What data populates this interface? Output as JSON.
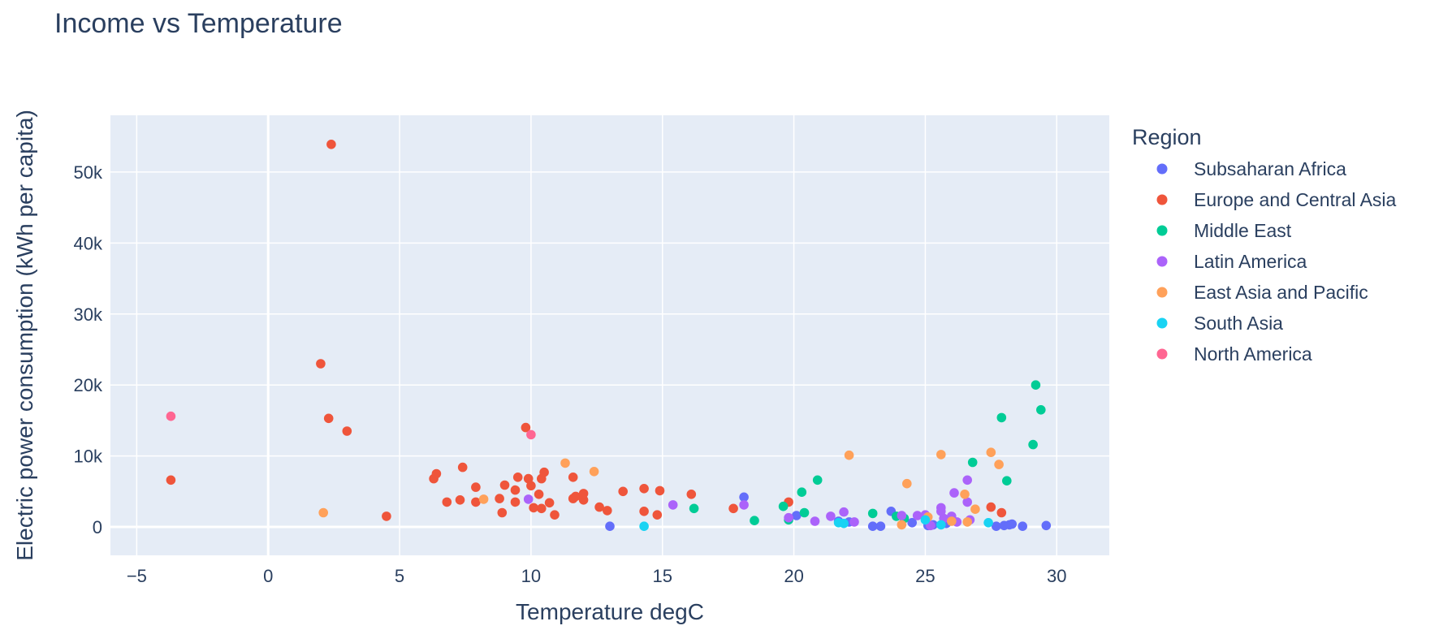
{
  "chart_data": {
    "type": "scatter",
    "title": "Income vs Temperature",
    "xlabel": "Temperature degC",
    "ylabel": "Electric power consumption (kWh per capita)",
    "xlim": [
      -6,
      32
    ],
    "ylim": [
      -4000,
      58000
    ],
    "x_ticks": [
      -5,
      0,
      5,
      10,
      15,
      20,
      25,
      30
    ],
    "x_tick_labels": [
      "−5",
      "0",
      "5",
      "10",
      "15",
      "20",
      "25",
      "30"
    ],
    "y_ticks": [
      0,
      10000,
      20000,
      30000,
      40000,
      50000
    ],
    "y_tick_labels": [
      "0",
      "10k",
      "20k",
      "30k",
      "40k",
      "50k"
    ],
    "grid": true,
    "legend_title": "Region",
    "legend_position": "right",
    "plot_bgcolor": "#e5ecf6",
    "series": [
      {
        "name": "Subsaharan Africa",
        "color": "#636efa",
        "points": [
          [
            13.0,
            100
          ],
          [
            18.1,
            4200
          ],
          [
            20.1,
            1600
          ],
          [
            21.7,
            800
          ],
          [
            22.1,
            700
          ],
          [
            23.0,
            100
          ],
          [
            23.3,
            100
          ],
          [
            23.7,
            2200
          ],
          [
            24.5,
            600
          ],
          [
            25.1,
            200
          ],
          [
            25.3,
            300
          ],
          [
            25.8,
            500
          ],
          [
            27.7,
            100
          ],
          [
            28.0,
            200
          ],
          [
            28.2,
            300
          ],
          [
            28.3,
            400
          ],
          [
            28.7,
            100
          ],
          [
            29.6,
            200
          ]
        ]
      },
      {
        "name": "Europe and Central Asia",
        "color": "#ef553b",
        "points": [
          [
            -3.7,
            6600
          ],
          [
            2.0,
            23000
          ],
          [
            2.3,
            15300
          ],
          [
            2.4,
            53900
          ],
          [
            3.0,
            13500
          ],
          [
            4.5,
            1500
          ],
          [
            6.3,
            6800
          ],
          [
            6.4,
            7500
          ],
          [
            6.8,
            3500
          ],
          [
            7.3,
            3800
          ],
          [
            7.4,
            8400
          ],
          [
            7.9,
            3500
          ],
          [
            7.9,
            5600
          ],
          [
            8.8,
            4000
          ],
          [
            8.9,
            2000
          ],
          [
            9.0,
            5900
          ],
          [
            9.4,
            5200
          ],
          [
            9.4,
            3500
          ],
          [
            9.5,
            7000
          ],
          [
            9.8,
            14000
          ],
          [
            9.9,
            6800
          ],
          [
            10.0,
            5800
          ],
          [
            10.1,
            2700
          ],
          [
            10.3,
            4600
          ],
          [
            10.4,
            2600
          ],
          [
            10.4,
            6800
          ],
          [
            10.5,
            7700
          ],
          [
            10.7,
            3400
          ],
          [
            10.9,
            1700
          ],
          [
            11.6,
            7000
          ],
          [
            11.6,
            4000
          ],
          [
            11.7,
            4300
          ],
          [
            12.0,
            3800
          ],
          [
            12.0,
            4700
          ],
          [
            12.6,
            2800
          ],
          [
            12.9,
            2300
          ],
          [
            13.5,
            5000
          ],
          [
            14.3,
            5400
          ],
          [
            14.3,
            2200
          ],
          [
            14.8,
            1700
          ],
          [
            14.9,
            5100
          ],
          [
            16.1,
            4600
          ],
          [
            17.7,
            2600
          ],
          [
            19.8,
            3500
          ],
          [
            27.5,
            2800
          ],
          [
            27.9,
            2000
          ]
        ]
      },
      {
        "name": "Middle East",
        "color": "#00cc96",
        "points": [
          [
            16.2,
            2600
          ],
          [
            18.5,
            900
          ],
          [
            19.6,
            2900
          ],
          [
            19.8,
            1000
          ],
          [
            20.3,
            4900
          ],
          [
            20.4,
            2000
          ],
          [
            20.9,
            6600
          ],
          [
            23.0,
            1900
          ],
          [
            23.9,
            1500
          ],
          [
            24.2,
            1200
          ],
          [
            26.8,
            9100
          ],
          [
            27.9,
            15400
          ],
          [
            28.1,
            6500
          ],
          [
            29.1,
            11600
          ],
          [
            29.2,
            20000
          ],
          [
            29.4,
            16500
          ]
        ]
      },
      {
        "name": "Latin America",
        "color": "#ab63fa",
        "points": [
          [
            9.9,
            3900
          ],
          [
            15.4,
            3100
          ],
          [
            18.1,
            3100
          ],
          [
            19.8,
            1300
          ],
          [
            20.8,
            800
          ],
          [
            21.4,
            1500
          ],
          [
            21.9,
            2100
          ],
          [
            22.3,
            700
          ],
          [
            24.1,
            1600
          ],
          [
            24.7,
            1600
          ],
          [
            25.0,
            1700
          ],
          [
            25.2,
            200
          ],
          [
            25.6,
            2700
          ],
          [
            25.6,
            2200
          ],
          [
            25.7,
            1200
          ],
          [
            26.0,
            1500
          ],
          [
            26.1,
            4800
          ],
          [
            26.2,
            700
          ],
          [
            26.6,
            6600
          ],
          [
            26.6,
            3500
          ],
          [
            26.7,
            1000
          ]
        ]
      },
      {
        "name": "East Asia and Pacific",
        "color": "#ffa15a",
        "points": [
          [
            2.1,
            2000
          ],
          [
            8.2,
            3900
          ],
          [
            11.3,
            9000
          ],
          [
            12.4,
            7800
          ],
          [
            22.1,
            10100
          ],
          [
            24.1,
            300
          ],
          [
            24.3,
            6100
          ],
          [
            25.1,
            1400
          ],
          [
            25.6,
            10200
          ],
          [
            26.0,
            800
          ],
          [
            26.5,
            4600
          ],
          [
            26.6,
            700
          ],
          [
            26.9,
            2500
          ],
          [
            27.5,
            10500
          ],
          [
            27.8,
            8800
          ]
        ]
      },
      {
        "name": "South Asia",
        "color": "#19d3f3",
        "points": [
          [
            14.3,
            100
          ],
          [
            21.7,
            600
          ],
          [
            21.9,
            500
          ],
          [
            25.0,
            1000
          ],
          [
            25.6,
            300
          ],
          [
            27.4,
            600
          ]
        ]
      },
      {
        "name": "North America",
        "color": "#ff6692",
        "points": [
          [
            -3.7,
            15600
          ],
          [
            10.0,
            13000
          ]
        ]
      }
    ]
  }
}
